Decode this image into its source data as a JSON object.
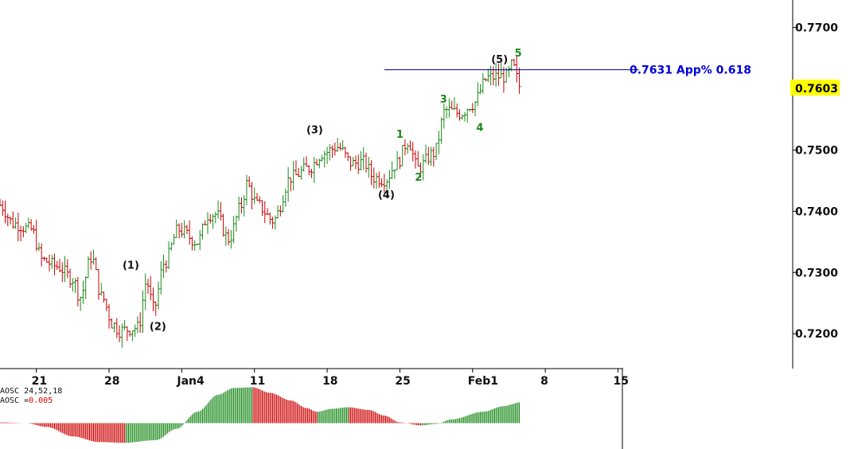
{
  "chart_data": {
    "type": "ohlc",
    "price_axis": {
      "ticks": [
        "0.7700",
        "0.7500",
        "0.7400",
        "0.7300",
        "0.7200"
      ],
      "tick_values": [
        0.77,
        0.75,
        0.74,
        0.73,
        0.72
      ],
      "ylim": [
        0.7143,
        0.7745
      ]
    },
    "date_axis": {
      "ticks": [
        "21",
        "28",
        "Jan4",
        "11",
        "18",
        "25",
        "Feb1",
        "8",
        "15"
      ],
      "tick_positions": [
        3,
        10,
        17,
        24,
        31,
        38,
        45,
        52,
        59
      ]
    },
    "current_price": {
      "label": "0.7603",
      "value": 0.7603,
      "bg": "#ffff00"
    },
    "level_line": {
      "value": 0.7631,
      "label": "0.7631 App% 0.618",
      "color": "#00008b",
      "label_color": "#0000dd",
      "x_start": 36.5,
      "x_end": 61
    },
    "candle_colors": {
      "up": "#1a8a1a",
      "down": "#cc0000"
    },
    "waves": [
      {
        "label": "(1)",
        "x": 12.1,
        "y": 0.7306,
        "style": "black"
      },
      {
        "label": "(2)",
        "x": 14.7,
        "y": 0.7206,
        "style": "black"
      },
      {
        "label": "(3)",
        "x": 29.8,
        "y": 0.7527,
        "style": "black"
      },
      {
        "label": "(4)",
        "x": 36.7,
        "y": 0.7421,
        "style": "black"
      },
      {
        "label": "(5)",
        "x": 47.6,
        "y": 0.7642,
        "style": "black"
      },
      {
        "label": "1",
        "x": 38.0,
        "y": 0.752,
        "style": "green"
      },
      {
        "label": "2",
        "x": 39.8,
        "y": 0.745,
        "style": "green"
      },
      {
        "label": "3",
        "x": 42.2,
        "y": 0.7577,
        "style": "green"
      },
      {
        "label": "4",
        "x": 45.7,
        "y": 0.7531,
        "style": "green"
      },
      {
        "label": "5",
        "x": 49.4,
        "y": 0.7653,
        "style": "green"
      }
    ],
    "anchors": [
      [
        -0.5,
        0.741
      ],
      [
        0.8,
        0.738
      ],
      [
        2.5,
        0.737
      ],
      [
        3.6,
        0.732
      ],
      [
        5.0,
        0.731
      ],
      [
        6.5,
        0.729
      ],
      [
        7.2,
        0.726
      ],
      [
        8.3,
        0.7325
      ],
      [
        9.3,
        0.726
      ],
      [
        10.4,
        0.7215
      ],
      [
        11.0,
        0.7205
      ],
      [
        12.8,
        0.721
      ],
      [
        13.6,
        0.7285
      ],
      [
        14.3,
        0.724
      ],
      [
        15.3,
        0.7315
      ],
      [
        16.7,
        0.737
      ],
      [
        18.5,
        0.735
      ],
      [
        19.6,
        0.7395
      ],
      [
        20.3,
        0.7395
      ],
      [
        21.5,
        0.7355
      ],
      [
        22.8,
        0.741
      ],
      [
        23.2,
        0.7445
      ],
      [
        24.3,
        0.741
      ],
      [
        25.8,
        0.7385
      ],
      [
        27.5,
        0.7455
      ],
      [
        29.2,
        0.747
      ],
      [
        30.6,
        0.7495
      ],
      [
        32.0,
        0.7505
      ],
      [
        33.4,
        0.7478
      ],
      [
        34.5,
        0.748
      ],
      [
        35.5,
        0.7455
      ],
      [
        36.6,
        0.7452
      ],
      [
        37.7,
        0.7478
      ],
      [
        38.8,
        0.7515
      ],
      [
        39.7,
        0.747
      ],
      [
        41.3,
        0.7495
      ],
      [
        42.4,
        0.7565
      ],
      [
        43.8,
        0.756
      ],
      [
        45.0,
        0.7575
      ],
      [
        46.5,
        0.7618
      ],
      [
        47.4,
        0.762
      ],
      [
        48.3,
        0.762
      ],
      [
        48.8,
        0.7638
      ],
      [
        49.6,
        0.7603
      ]
    ],
    "oscillator": {
      "label": "AOSC 24,52,18",
      "value_prefix": "AOSC =",
      "value": "0.005",
      "anchors": [
        [
          -0.5,
          0.02
        ],
        [
          2.0,
          0.0
        ],
        [
          4.0,
          -0.1
        ],
        [
          6.5,
          -0.35
        ],
        [
          9.0,
          -0.5
        ],
        [
          11.5,
          -0.52
        ],
        [
          14.5,
          -0.45
        ],
        [
          16.5,
          -0.15
        ],
        [
          18.5,
          0.3
        ],
        [
          20.5,
          0.75
        ],
        [
          22.0,
          0.93
        ],
        [
          23.8,
          0.95
        ],
        [
          25.5,
          0.8
        ],
        [
          27.5,
          0.6
        ],
        [
          29.0,
          0.4
        ],
        [
          30.0,
          0.3
        ],
        [
          31.5,
          0.38
        ],
        [
          33.0,
          0.42
        ],
        [
          35.0,
          0.35
        ],
        [
          36.5,
          0.2
        ],
        [
          38.0,
          0.02
        ],
        [
          40.0,
          -0.06
        ],
        [
          41.5,
          -0.02
        ],
        [
          43.0,
          0.1
        ],
        [
          46.0,
          0.3
        ],
        [
          48.0,
          0.45
        ],
        [
          49.6,
          0.55
        ]
      ],
      "ylim": [
        -0.6,
        1.0
      ]
    }
  }
}
